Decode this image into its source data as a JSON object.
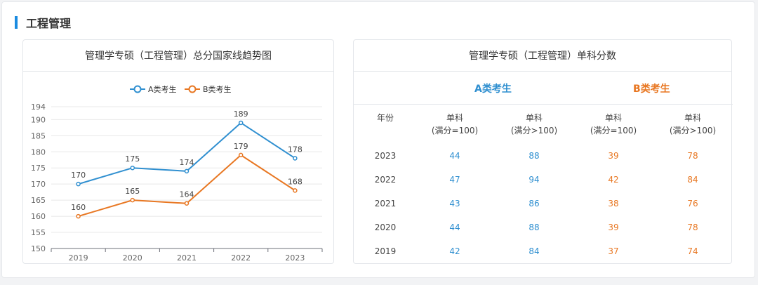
{
  "section": {
    "title": "工程管理"
  },
  "left_card": {
    "title": "管理学专硕（工程管理）总分国家线趋势图"
  },
  "chart_data": {
    "type": "line",
    "title": "管理学专硕（工程管理）总分国家线趋势图",
    "x": [
      "2019",
      "2020",
      "2021",
      "2022",
      "2023"
    ],
    "series": [
      {
        "name": "A类考生",
        "values": [
          170,
          175,
          174,
          189,
          178
        ],
        "color": "#2f8fd0"
      },
      {
        "name": "B类考生",
        "values": [
          160,
          165,
          164,
          179,
          168
        ],
        "color": "#e87722"
      }
    ],
    "ylim": [
      150,
      194
    ],
    "yticks": [
      150,
      155,
      160,
      165,
      170,
      175,
      180,
      185,
      190,
      194
    ],
    "grid": true,
    "legend": "top-center"
  },
  "right_card": {
    "title": "管理学专硕（工程管理）单科分数",
    "group_a": "A类考生",
    "group_b": "B类考生",
    "color_a": "#2f8fd0",
    "color_b": "#e87722",
    "headers": [
      [
        "年份"
      ],
      [
        "单科",
        "(满分=100)"
      ],
      [
        "单科",
        "(满分>100)"
      ],
      [
        "单科",
        "(满分=100)"
      ],
      [
        "单科",
        "(满分>100)"
      ]
    ],
    "rows": [
      [
        "2023",
        "44",
        "88",
        "39",
        "78"
      ],
      [
        "2022",
        "47",
        "94",
        "42",
        "84"
      ],
      [
        "2021",
        "43",
        "86",
        "38",
        "76"
      ],
      [
        "2020",
        "44",
        "88",
        "39",
        "78"
      ],
      [
        "2019",
        "42",
        "84",
        "37",
        "74"
      ]
    ]
  }
}
